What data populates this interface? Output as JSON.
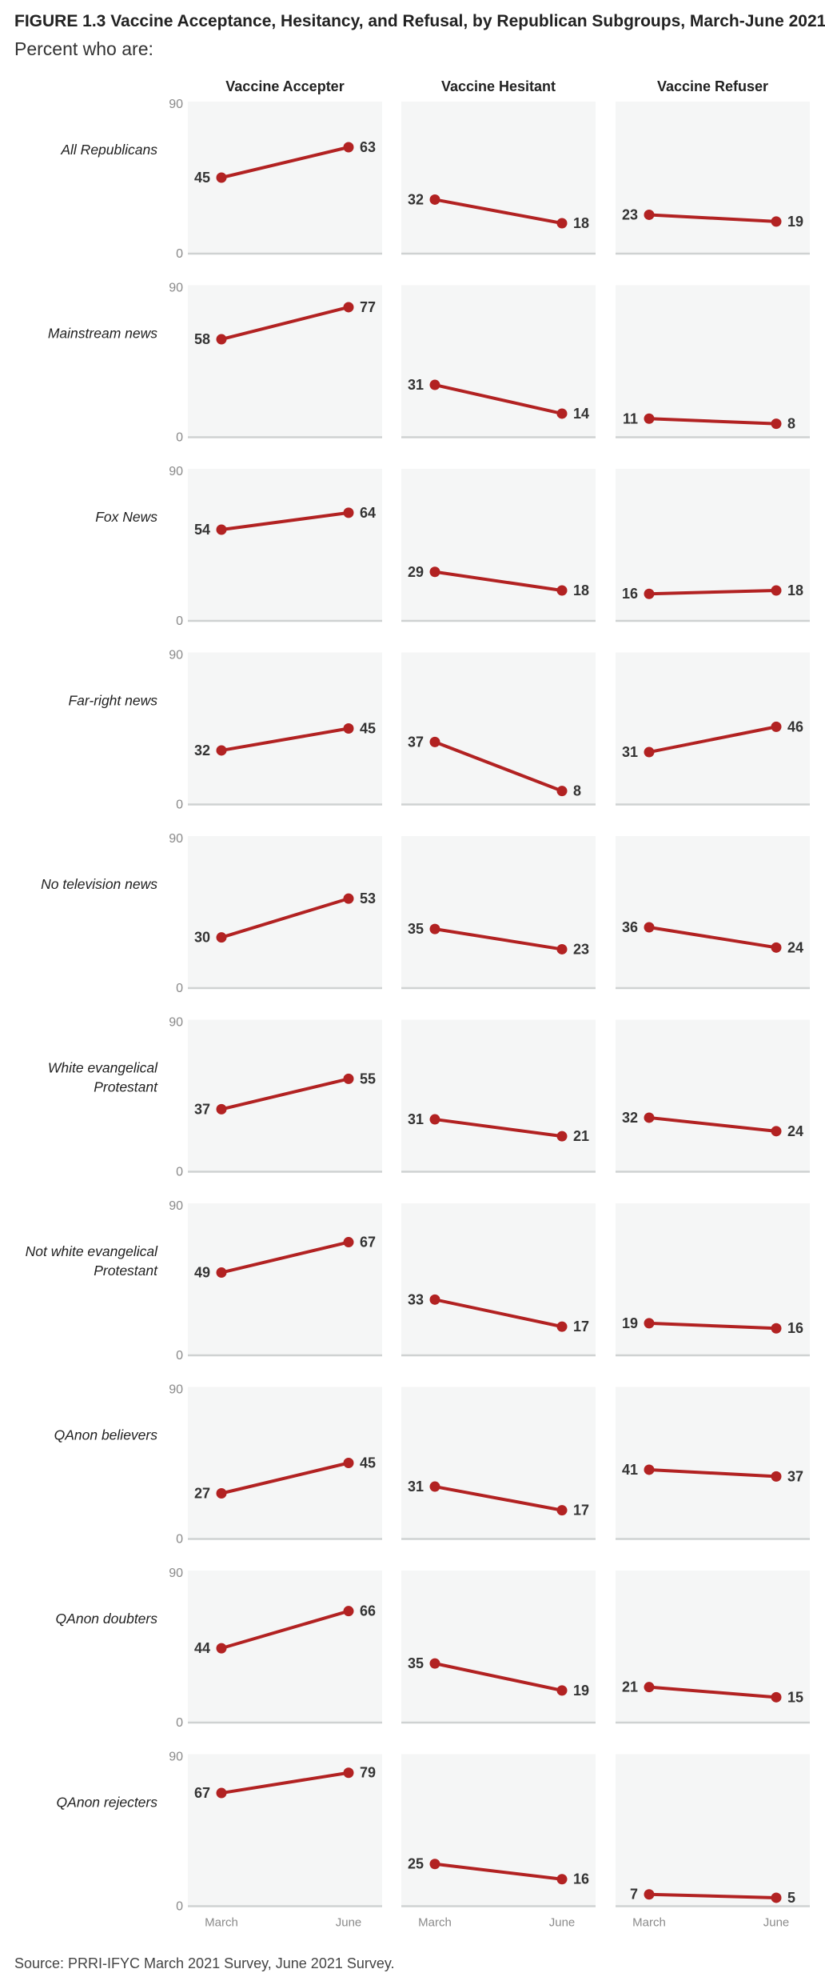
{
  "title": "FIGURE 1.3  Vaccine Acceptance, Hesitancy, and Refusal, by Republican Subgroups, March-June 2021",
  "subtitle": "Percent who are:",
  "source": "Source: PRRI-IFYC March 2021 Survey, June 2021 Survey.",
  "colors": {
    "line": "#b22222",
    "panel": "#f5f6f6",
    "baseline": "#cfd2d2"
  },
  "chart_data": {
    "type": "line",
    "columns": [
      "Vaccine Accepter",
      "Vaccine Hesitant",
      "Vaccine Refuser"
    ],
    "x": [
      "March",
      "June"
    ],
    "ylim": [
      0,
      90
    ],
    "yticks": [
      "90",
      "0"
    ],
    "rows": [
      {
        "label": "All Republicans",
        "values": [
          [
            45,
            63
          ],
          [
            32,
            18
          ],
          [
            23,
            19
          ]
        ]
      },
      {
        "label": "Mainstream news",
        "values": [
          [
            58,
            77
          ],
          [
            31,
            14
          ],
          [
            11,
            8
          ]
        ]
      },
      {
        "label": "Fox News",
        "values": [
          [
            54,
            64
          ],
          [
            29,
            18
          ],
          [
            16,
            18
          ]
        ]
      },
      {
        "label": "Far-right news",
        "values": [
          [
            32,
            45
          ],
          [
            37,
            8
          ],
          [
            31,
            46
          ]
        ]
      },
      {
        "label": "No television news",
        "values": [
          [
            30,
            53
          ],
          [
            35,
            23
          ],
          [
            36,
            24
          ]
        ]
      },
      {
        "label": "White evangelical Protestant",
        "values": [
          [
            37,
            55
          ],
          [
            31,
            21
          ],
          [
            32,
            24
          ]
        ]
      },
      {
        "label": "Not white evangelical Protestant",
        "values": [
          [
            49,
            67
          ],
          [
            33,
            17
          ],
          [
            19,
            16
          ]
        ]
      },
      {
        "label": "QAnon believers",
        "values": [
          [
            27,
            45
          ],
          [
            31,
            17
          ],
          [
            41,
            37
          ]
        ]
      },
      {
        "label": "QAnon doubters",
        "values": [
          [
            44,
            66
          ],
          [
            35,
            19
          ],
          [
            21,
            15
          ]
        ]
      },
      {
        "label": "QAnon rejecters",
        "values": [
          [
            67,
            79
          ],
          [
            25,
            16
          ],
          [
            7,
            5
          ]
        ]
      }
    ]
  }
}
